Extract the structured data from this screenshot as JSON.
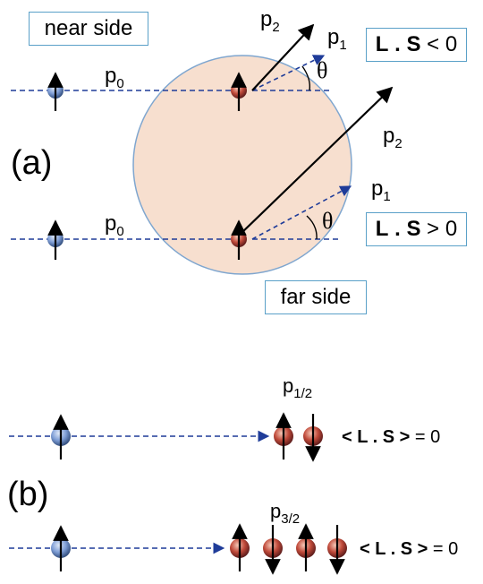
{
  "part_a": {
    "label": "(a)",
    "near_side": "near side",
    "far_side": "far side",
    "top": {
      "p0": {
        "base": "p",
        "sub": "0"
      },
      "p1": {
        "base": "p",
        "sub": "1"
      },
      "p2": {
        "base": "p",
        "sub": "2"
      },
      "theta": "θ",
      "ls": {
        "L": "L",
        "dot": " . ",
        "S": "S",
        "rel": " < 0"
      }
    },
    "bottom": {
      "p0": {
        "base": "p",
        "sub": "0"
      },
      "p1": {
        "base": "p",
        "sub": "1"
      },
      "p2": {
        "base": "p",
        "sub": "2"
      },
      "theta": "θ",
      "ls": {
        "L": "L",
        "dot": " . ",
        "S": "S",
        "rel": " > 0"
      }
    }
  },
  "part_b": {
    "label": "(b)",
    "row1": {
      "state": {
        "base": "p",
        "sub": "1/2"
      },
      "ls": {
        "open": "< ",
        "L": "L",
        "dot": " . ",
        "S": "S",
        "close": " >",
        "val": " = 0"
      }
    },
    "row2": {
      "state": {
        "base": "p",
        "sub": "3/2"
      },
      "ls": {
        "open": "< ",
        "L": "L",
        "dot": " . ",
        "S": "S",
        "close": " >",
        "val": " = 0"
      }
    }
  },
  "colors": {
    "nucleus_fill": "#f7dfcf",
    "nucleus_stroke": "#7fa6cf",
    "beam_dashed": "#1f3c99",
    "incident_particle": "#7f9ed6",
    "bound_particle": "#c04a3a",
    "box_border": "#5aa0c8"
  }
}
